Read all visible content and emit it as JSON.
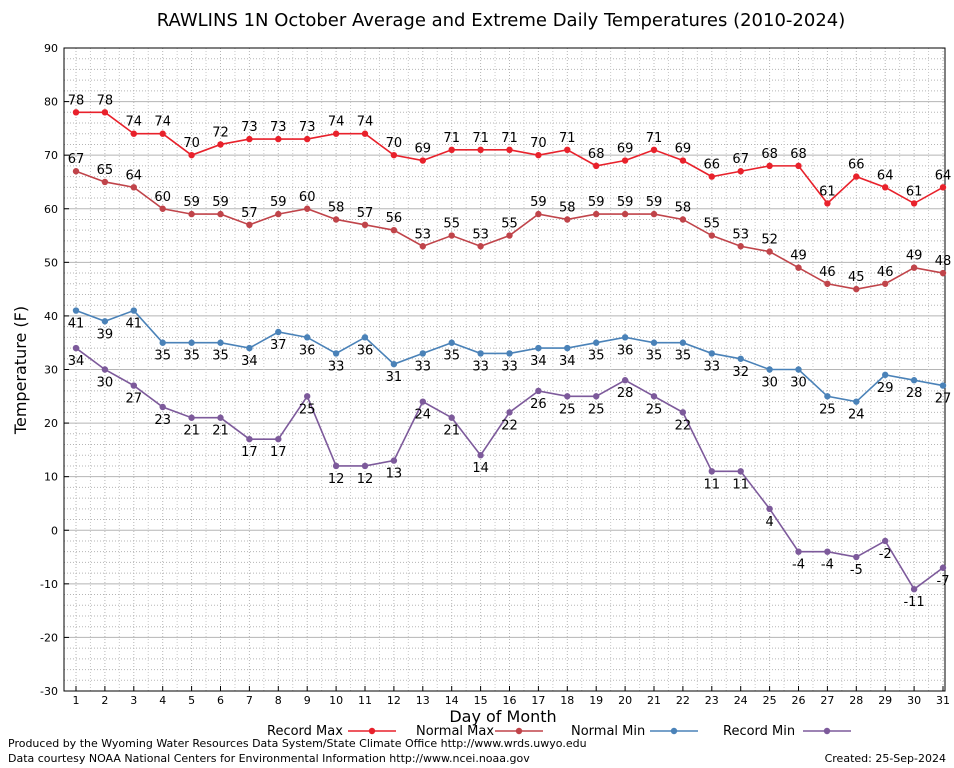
{
  "chart_data": {
    "type": "line",
    "title": "RAWLINS 1N October Average and Extreme Daily Temperatures (2010-2024)",
    "xlabel": "Day of Month",
    "ylabel": "Temperature (F)",
    "ylim": [
      -30,
      90
    ],
    "yticks": [
      -30,
      -20,
      -10,
      0,
      10,
      20,
      30,
      40,
      50,
      60,
      70,
      80,
      90
    ],
    "categories": [
      "1",
      "2",
      "3",
      "4",
      "5",
      "6",
      "7",
      "8",
      "9",
      "10",
      "11",
      "12",
      "13",
      "14",
      "15",
      "16",
      "17",
      "18",
      "19",
      "20",
      "21",
      "22",
      "23",
      "24",
      "25",
      "26",
      "27",
      "28",
      "29",
      "30",
      "31"
    ],
    "grid": true,
    "legend_position": "bottom",
    "series": [
      {
        "name": "Record Max",
        "color": "#e8212b",
        "values": [
          78,
          78,
          74,
          74,
          70,
          72,
          73,
          73,
          73,
          74,
          74,
          70,
          69,
          71,
          71,
          71,
          70,
          71,
          68,
          69,
          71,
          69,
          66,
          67,
          68,
          68,
          61,
          66,
          64,
          61,
          64
        ]
      },
      {
        "name": "Normal Max",
        "color": "#c0444a",
        "values": [
          67,
          65,
          64,
          60,
          59,
          59,
          57,
          59,
          60,
          58,
          57,
          56,
          53,
          55,
          53,
          55,
          59,
          58,
          59,
          59,
          59,
          58,
          55,
          53,
          52,
          49,
          46,
          45,
          46,
          49,
          48
        ]
      },
      {
        "name": "Normal Min",
        "color": "#4a82b8",
        "values": [
          41,
          39,
          41,
          35,
          35,
          35,
          34,
          37,
          36,
          33,
          36,
          31,
          33,
          35,
          33,
          33,
          34,
          34,
          35,
          36,
          35,
          35,
          33,
          32,
          30,
          30,
          25,
          24,
          29,
          28,
          27
        ]
      },
      {
        "name": "Record Min",
        "color": "#7d5a9b",
        "values": [
          34,
          30,
          27,
          23,
          21,
          21,
          17,
          17,
          25,
          12,
          12,
          13,
          24,
          21,
          14,
          22,
          26,
          25,
          25,
          28,
          25,
          22,
          11,
          11,
          4,
          -4,
          -4,
          -5,
          -2,
          -11,
          -7
        ]
      }
    ]
  },
  "footer": {
    "produced_by": "Produced by the Wyoming Water Resources Data System/State Climate Office http://www.wrds.uwyo.edu",
    "courtesy": "Data courtesy NOAA National Centers for Environmental Information http://www.ncei.noaa.gov",
    "created": "Created: 25-Sep-2024"
  }
}
